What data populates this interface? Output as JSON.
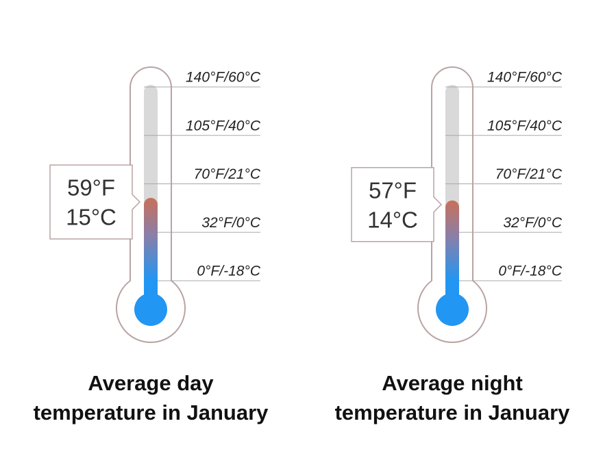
{
  "chart_data": [
    {
      "type": "thermometer",
      "title": [
        "Average day",
        "temperature in January"
      ],
      "values": [
        59,
        15
      ],
      "value_labels": [
        "59°F",
        "15°C"
      ],
      "ylim": [
        0,
        140
      ],
      "yticks": [
        {
          "value": 140,
          "label": "140°F/60°C"
        },
        {
          "value": 105,
          "label": "105°F/40°C"
        },
        {
          "value": 70,
          "label": "70°F/21°C"
        },
        {
          "value": 32,
          "label": "32°F/0°C"
        },
        {
          "value": 0,
          "label": "0°F/-18°C"
        }
      ],
      "color": "#2196f3",
      "grid": true
    },
    {
      "type": "thermometer",
      "title": [
        "Average night",
        "temperature in January"
      ],
      "values": [
        57,
        14
      ],
      "value_labels": [
        "57°F",
        "14°C"
      ],
      "ylim": [
        0,
        140
      ],
      "yticks": [
        {
          "value": 140,
          "label": "140°F/60°C"
        },
        {
          "value": 105,
          "label": "105°F/40°C"
        },
        {
          "value": 70,
          "label": "70°F/21°C"
        },
        {
          "value": 32,
          "label": "32°F/0°C"
        },
        {
          "value": 0,
          "label": "0°F/-18°C"
        }
      ],
      "color": "#2196f3",
      "grid": true
    }
  ]
}
